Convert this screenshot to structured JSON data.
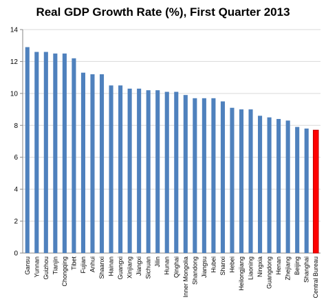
{
  "chart_data": {
    "type": "bar",
    "title": "Real GDP Growth Rate (%), First Quarter 2013",
    "xlabel": "",
    "ylabel": "",
    "ylim": [
      0,
      14
    ],
    "yticks": [
      0,
      2,
      4,
      6,
      8,
      10,
      12,
      14
    ],
    "grid": true,
    "legend": "none",
    "categories": [
      "Gansu",
      "Yunnan",
      "Guizhou",
      "Tianjin",
      "Chongqing",
      "Tibet",
      "Fujian",
      "Anhui",
      "Shaanxi",
      "Hainan",
      "Guangxi",
      "Xinjiang",
      "Jiangxi",
      "Sichuan",
      "Jilin",
      "Hunan",
      "Qinghai",
      "Inner Mongolia",
      "Shandong",
      "Jiangsu",
      "Hubei",
      "Shanxi",
      "Hebei",
      "Heilongjiang",
      "Liaoning",
      "Ningxia",
      "Guangdong",
      "Henan",
      "Zhejiang",
      "Beijing",
      "Shanghai",
      "Central Bureau"
    ],
    "values": [
      12.9,
      12.6,
      12.6,
      12.5,
      12.5,
      12.2,
      11.3,
      11.2,
      11.2,
      10.5,
      10.5,
      10.3,
      10.3,
      10.2,
      10.2,
      10.1,
      10.1,
      9.9,
      9.7,
      9.7,
      9.7,
      9.5,
      9.1,
      9.0,
      9.0,
      8.6,
      8.5,
      8.4,
      8.3,
      7.9,
      7.8,
      7.7
    ],
    "colors": {
      "default": "#4F81BD",
      "highlight": "#FF0000",
      "highlight_border": "#C00000",
      "grid": "#D9D9D9",
      "axis": "#868686"
    },
    "highlight_category": "Central Bureau"
  }
}
